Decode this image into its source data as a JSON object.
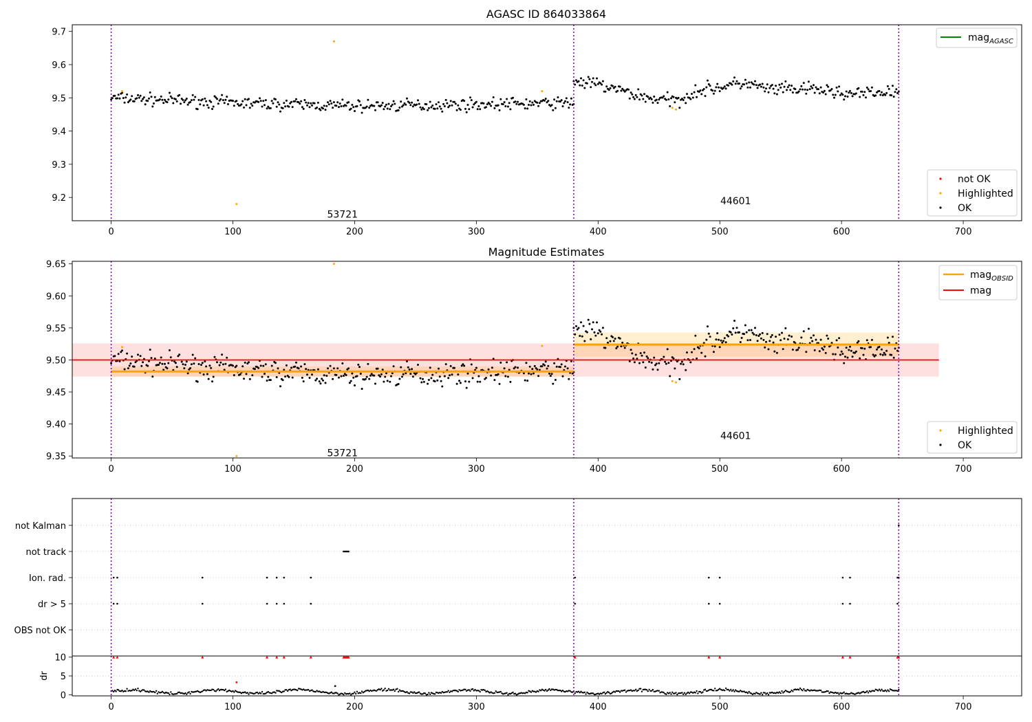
{
  "chart_data": [
    {
      "type": "scatter",
      "title": "AGASC ID 864033864",
      "xlim": [
        -32,
        748
      ],
      "ylim": [
        9.13,
        9.72
      ],
      "xticks": [
        "0",
        "100",
        "200",
        "300",
        "400",
        "500",
        "600",
        "700"
      ],
      "yticks": [
        "9.2",
        "9.3",
        "9.4",
        "9.5",
        "9.6",
        "9.7"
      ],
      "obsid_boundaries": [
        0,
        380,
        647
      ],
      "obsid_labels": [
        "53721",
        "44601"
      ],
      "annotation_y": [
        9.15,
        9.19
      ],
      "lines": [
        {
          "name": "mag_AGASC",
          "color": "#008000",
          "y": null
        }
      ],
      "series": [
        {
          "name": "not OK",
          "color": "#ff0000",
          "points": []
        },
        {
          "name": "Highlighted",
          "color": "#ffa500",
          "points": [
            [
              9,
              9.52
            ],
            [
              183,
              9.67
            ],
            [
              103,
              9.18
            ],
            [
              354,
              9.52
            ],
            [
              461,
              9.47
            ],
            [
              464,
              9.465
            ]
          ]
        },
        {
          "name": "OK",
          "color": "#000000",
          "segments": [
            {
              "x": [
                0,
                380
              ],
              "knots": [
                [
                  0,
                  9.5
                ],
                [
                  100,
                  9.485
                ],
                [
                  200,
                  9.475
                ],
                [
                  300,
                  9.48
                ],
                [
                  380,
                  9.485
                ]
              ],
              "noise": 0.009
            },
            {
              "x": [
                380,
                647
              ],
              "knots": [
                [
                  380,
                  9.55
                ],
                [
                  400,
                  9.54
                ],
                [
                  440,
                  9.5
                ],
                [
                  465,
                  9.49
                ],
                [
                  480,
                  9.52
                ],
                [
                  520,
                  9.545
                ],
                [
                  540,
                  9.525
                ],
                [
                  580,
                  9.525
                ],
                [
                  610,
                  9.51
                ],
                [
                  647,
                  9.52
                ]
              ],
              "noise": 0.01
            }
          ]
        }
      ],
      "legend_upper": [
        "mag_AGASC"
      ],
      "legend_lower": [
        "not OK",
        "Highlighted",
        "OK"
      ]
    },
    {
      "type": "scatter",
      "title": "Magnitude Estimates",
      "xlim": [
        -32,
        748
      ],
      "ylim": [
        9.347,
        9.654
      ],
      "xticks": [
        "0",
        "100",
        "200",
        "300",
        "400",
        "500",
        "600",
        "700"
      ],
      "yticks": [
        "9.35",
        "9.40",
        "9.45",
        "9.50",
        "9.55",
        "9.60",
        "9.65"
      ],
      "obsid_boundaries": [
        0,
        380,
        647
      ],
      "obsid_labels": [
        "53721",
        "44601"
      ],
      "annotation_y": [
        9.355,
        9.382
      ],
      "mag": {
        "name": "mag",
        "value": 9.5,
        "band": [
          9.474,
          9.526
        ],
        "x": [
          -32,
          680
        ],
        "color": "#ff0000"
      },
      "mag_obsid": {
        "name": "mag_OBSID",
        "color": "#ffa500",
        "values": [
          {
            "x": [
              0,
              380
            ],
            "value": 9.482,
            "band": [
              9.474,
              9.49
            ]
          },
          {
            "x": [
              380,
              647
            ],
            "value": 9.524,
            "band": [
              9.505,
              9.543
            ]
          }
        ]
      },
      "series": [
        {
          "name": "Highlighted",
          "color": "#ffa500",
          "points": [
            [
              9,
              9.52
            ],
            [
              183,
              9.65
            ],
            [
              103,
              9.35
            ],
            [
              354,
              9.522
            ],
            [
              461,
              9.467
            ],
            [
              464,
              9.465
            ]
          ]
        },
        {
          "name": "OK",
          "color": "#000000",
          "segments": [
            {
              "x": [
                0,
                380
              ],
              "knots": [
                [
                  0,
                  9.5
                ],
                [
                  100,
                  9.485
                ],
                [
                  200,
                  9.475
                ],
                [
                  300,
                  9.48
                ],
                [
                  380,
                  9.485
                ]
              ],
              "noise": 0.009
            },
            {
              "x": [
                380,
                647
              ],
              "knots": [
                [
                  380,
                  9.55
                ],
                [
                  400,
                  9.54
                ],
                [
                  440,
                  9.5
                ],
                [
                  465,
                  9.49
                ],
                [
                  480,
                  9.52
                ],
                [
                  520,
                  9.545
                ],
                [
                  540,
                  9.525
                ],
                [
                  580,
                  9.525
                ],
                [
                  610,
                  9.51
                ],
                [
                  647,
                  9.52
                ]
              ],
              "noise": 0.01
            }
          ]
        }
      ],
      "legend_upper": [
        "mag_OBSID",
        "mag"
      ],
      "legend_lower": [
        "Highlighted",
        "OK"
      ]
    },
    {
      "type": "scatter",
      "title": "",
      "xlim": [
        -32,
        748
      ],
      "categories": [
        "not Kalman",
        "not track",
        "Ion. rad.",
        "dr > 5",
        "OBS not OK"
      ],
      "obsid_boundaries": [
        0,
        380,
        647
      ],
      "flags": {
        "not Kalman": [
          647
        ],
        "not track": [
          191,
          192,
          193,
          194,
          195
        ],
        "Ion. rad.": [
          2,
          5,
          75,
          128,
          136,
          142,
          164,
          381,
          491,
          500,
          601,
          607,
          646,
          647
        ],
        "dr > 5": [
          2,
          5,
          75,
          128,
          136,
          142,
          164,
          381,
          491,
          500,
          601,
          607,
          646
        ],
        "OBS not OK": []
      }
    },
    {
      "type": "scatter",
      "title": "",
      "ylabel": "dr",
      "xlim": [
        -32,
        748
      ],
      "ylim": [
        -0.3,
        10.3
      ],
      "xticks": [
        "0",
        "100",
        "200",
        "300",
        "400",
        "500",
        "600",
        "700"
      ],
      "yticks": [
        "0",
        "5",
        "10"
      ],
      "obsid_boundaries": [
        0,
        380,
        647
      ],
      "clipped_points": {
        "color": "#ff0000",
        "value": 10,
        "x": [
          2,
          5,
          75,
          128,
          136,
          142,
          164,
          191,
          192,
          193,
          194,
          195,
          381,
          491,
          500,
          601,
          607,
          646,
          647
        ]
      },
      "outliers": [
        {
          "x": 103,
          "y": 3.3,
          "color": "#ff0000"
        },
        {
          "x": 184,
          "y": 2.3,
          "color": "#000000"
        }
      ],
      "baseline": {
        "color": "#000000",
        "mean": 0.8,
        "amplitude": 0.5
      }
    }
  ],
  "legend": {
    "mag_AGASC": "mag",
    "mag_AGASC_sub": "AGASC",
    "mag_OBSID": "mag",
    "mag_OBSID_sub": "OBSID",
    "mag": "mag",
    "not OK": "not OK",
    "Highlighted": "Highlighted",
    "OK": "OK"
  }
}
